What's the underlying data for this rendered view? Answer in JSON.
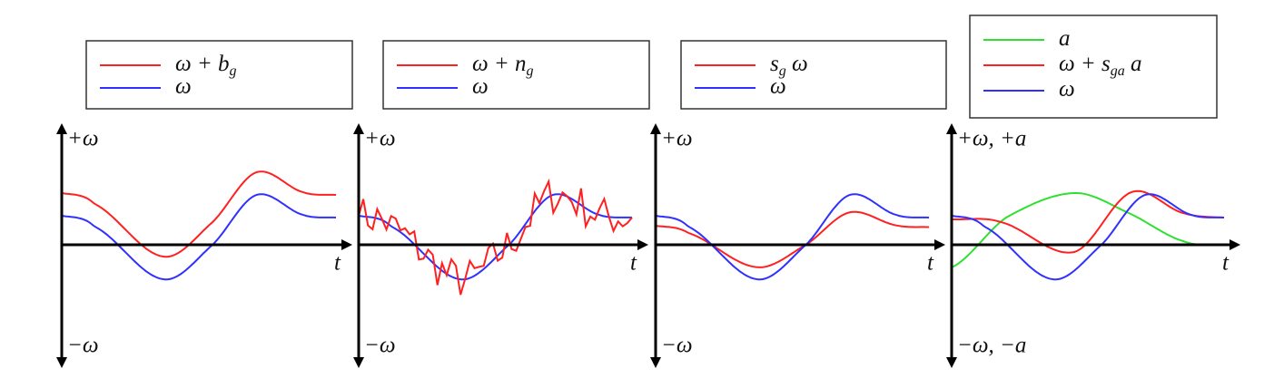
{
  "panels": [
    {
      "legend": [
        [
          {
            "text": "ω + b"
          },
          {
            "sub": "g"
          }
        ],
        [
          {
            "text": "ω"
          }
        ]
      ],
      "y_top": "+ω",
      "y_bottom": "−ω",
      "x_axis": "t"
    },
    {
      "legend": [
        [
          {
            "text": "ω + n"
          },
          {
            "sub": "g"
          }
        ],
        [
          {
            "text": "ω"
          }
        ]
      ],
      "y_top": "+ω",
      "y_bottom": "−ω",
      "x_axis": "t"
    },
    {
      "legend": [
        [
          {
            "text": "s"
          },
          {
            "sub": "g"
          },
          {
            "text": " ω"
          }
        ],
        [
          {
            "text": "ω"
          }
        ]
      ],
      "y_top": "+ω",
      "y_bottom": "−ω",
      "x_axis": "t"
    },
    {
      "legend": [
        [
          {
            "text": "a"
          }
        ],
        [
          {
            "text": "ω + s"
          },
          {
            "sub": "ga"
          },
          {
            "text": " a"
          }
        ],
        [
          {
            "text": "ω"
          }
        ]
      ],
      "y_top": "+ω, +a",
      "y_bottom": "−ω, −a",
      "x_axis": "t"
    }
  ]
}
